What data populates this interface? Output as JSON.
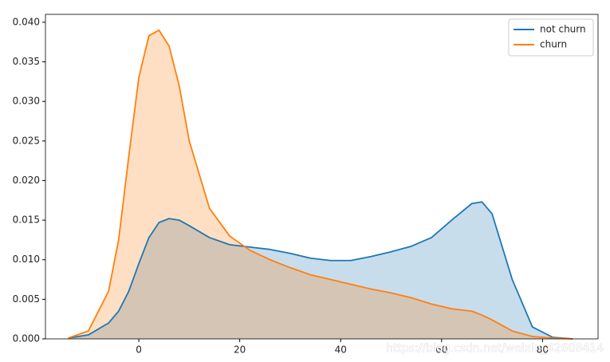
{
  "chart_data": {
    "type": "kde",
    "legend": "upper right",
    "xlim": [
      -18.5,
      91
    ],
    "ylim": [
      0,
      0.041
    ],
    "xticks": [
      0,
      20,
      40,
      60,
      80
    ],
    "yticks": [
      {
        "value": 0,
        "label": "0.000"
      },
      {
        "value": 0.005,
        "label": "0.005"
      },
      {
        "value": 0.01,
        "label": "0.010"
      },
      {
        "value": 0.015,
        "label": "0.015"
      },
      {
        "value": 0.02,
        "label": "0.020"
      },
      {
        "value": 0.025,
        "label": "0.025"
      },
      {
        "value": 0.03,
        "label": "0.030"
      },
      {
        "value": 0.035,
        "label": "0.035"
      },
      {
        "value": 0.04,
        "label": "0.040"
      }
    ],
    "x": [
      -14,
      -10,
      -6,
      -4,
      -2,
      0,
      2,
      4,
      6,
      8,
      10,
      14,
      18,
      22,
      26,
      30,
      34,
      38,
      42,
      46,
      50,
      54,
      58,
      62,
      66,
      68,
      70,
      74,
      78,
      82,
      86
    ],
    "series": [
      {
        "name": "not churn",
        "color": "#1f77b4",
        "values": [
          0.0001,
          0.0005,
          0.002,
          0.0035,
          0.006,
          0.0095,
          0.0128,
          0.0147,
          0.0152,
          0.015,
          0.0143,
          0.0128,
          0.0119,
          0.0116,
          0.0113,
          0.0108,
          0.0102,
          0.0099,
          0.0099,
          0.0104,
          0.011,
          0.0117,
          0.0128,
          0.015,
          0.0171,
          0.0173,
          0.0158,
          0.0075,
          0.0015,
          0.0002,
          0
        ]
      },
      {
        "name": "churn",
        "color": "#ff7f0e",
        "values": [
          0.0001,
          0.001,
          0.006,
          0.0125,
          0.023,
          0.033,
          0.0383,
          0.039,
          0.037,
          0.032,
          0.025,
          0.0165,
          0.013,
          0.0112,
          0.01,
          0.009,
          0.0081,
          0.0075,
          0.0069,
          0.0063,
          0.0058,
          0.0052,
          0.0044,
          0.0038,
          0.0035,
          0.003,
          0.0024,
          0.001,
          0.0003,
          0.0001,
          0
        ]
      }
    ],
    "watermark": "https://blog.csdn.net/weixin_42608414"
  }
}
